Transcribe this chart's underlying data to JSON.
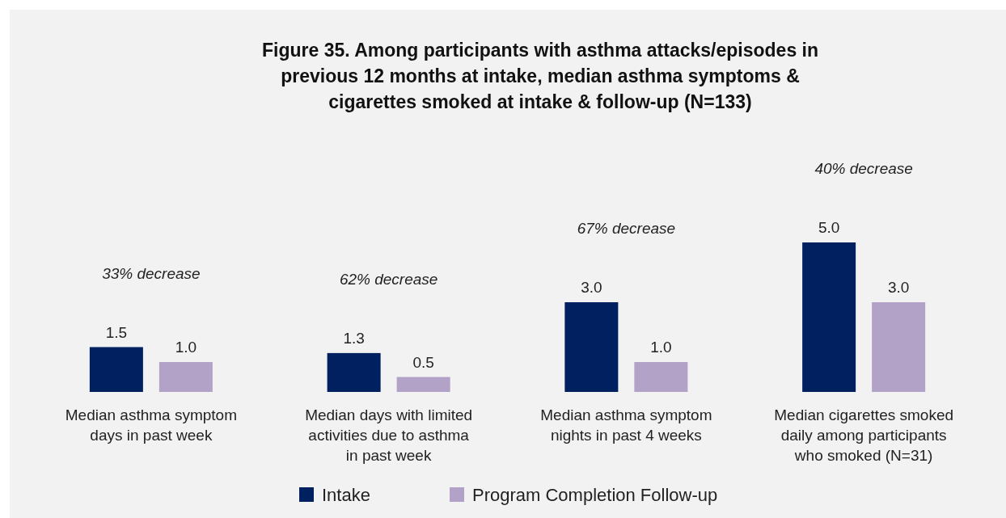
{
  "chart_data": {
    "type": "bar",
    "title": "Figure 35. Among participants with asthma attacks/episodes in previous 12 months at intake, median asthma symptoms & cigarettes smoked at intake & follow-up (N=133)",
    "categories": [
      "Median asthma symptom days in past week",
      "Median days with limited activities due to asthma in past week",
      "Median asthma symptom nights in past 4 weeks",
      "Median cigarettes smoked daily among participants who smoked (N=31)"
    ],
    "series": [
      {
        "name": "Intake",
        "color": "#002060",
        "values": [
          1.5,
          1.3,
          3.0,
          5.0
        ],
        "value_labels": [
          "1.5",
          "1.3",
          "3.0",
          "5.0"
        ]
      },
      {
        "name": "Program Completion Follow-up",
        "color": "#b3a2c7",
        "values": [
          1.0,
          0.5,
          1.0,
          3.0
        ],
        "value_labels": [
          "1.0",
          "0.5",
          "1.0",
          "3.0"
        ]
      }
    ],
    "annotations": [
      "33% decrease",
      "62% decrease",
      "67% decrease",
      "40% decrease"
    ],
    "legend": "bottom"
  }
}
